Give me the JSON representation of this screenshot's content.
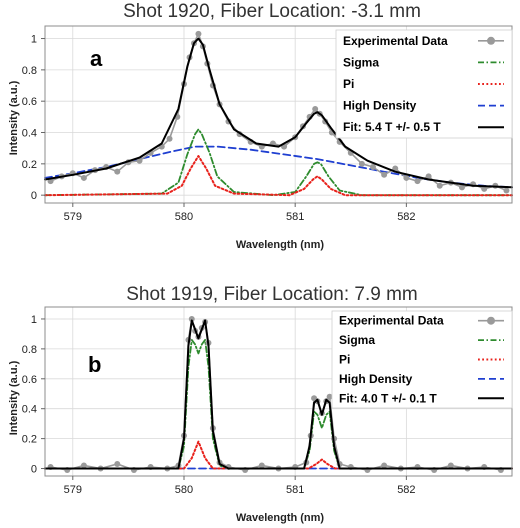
{
  "colors": {
    "experimental": "#9a9a9a",
    "sigma": "#2e8b2e",
    "pi": "#e8221c",
    "high_density": "#1f3fd1",
    "fit": "#000000"
  },
  "chart_data": [
    {
      "type": "line",
      "panel_letter": "a",
      "title": "Shot 1920, Fiber Location: -3.1 mm",
      "xlabel": "Wavelength (nm)",
      "ylabel": "Intensity (a.u.)",
      "xlim": [
        578.75,
        582.95
      ],
      "ylim": [
        -0.05,
        1.08
      ],
      "xticks": [
        579,
        580,
        581,
        582
      ],
      "yticks": [
        0,
        0.2,
        0.4,
        0.6,
        0.8,
        1
      ],
      "ytick_labels": [
        "0",
        "0.2",
        "0.4",
        "0.6",
        "0.8",
        "1"
      ],
      "grid": true,
      "legend_position": "top-right",
      "legend": [
        "Experimental Data",
        "Sigma",
        "Pi",
        "High Density",
        "Fit: 5.4 T +/- 0.5 T"
      ],
      "peaks": [
        580.13,
        581.2
      ],
      "series": [
        {
          "key": "high_density",
          "style": "dashed",
          "x": [
            578.75,
            579.0,
            579.3,
            579.6,
            579.9,
            580.1,
            580.3,
            580.6,
            580.9,
            581.2,
            581.5,
            581.8,
            582.1,
            582.4,
            582.7,
            582.95
          ],
          "y": [
            0.11,
            0.14,
            0.18,
            0.23,
            0.28,
            0.31,
            0.31,
            0.29,
            0.26,
            0.23,
            0.19,
            0.15,
            0.11,
            0.08,
            0.06,
            0.05
          ]
        },
        {
          "key": "sigma",
          "style": "dashdot",
          "x": [
            578.75,
            579.8,
            579.95,
            580.03,
            580.1,
            580.13,
            580.16,
            580.23,
            580.3,
            580.45,
            580.8,
            581.0,
            581.1,
            581.17,
            581.2,
            581.23,
            581.3,
            581.4,
            581.6,
            582.95
          ],
          "y": [
            0,
            0.01,
            0.08,
            0.26,
            0.39,
            0.42,
            0.39,
            0.27,
            0.12,
            0.02,
            0.0,
            0.02,
            0.12,
            0.2,
            0.21,
            0.2,
            0.12,
            0.03,
            0.0,
            0
          ]
        },
        {
          "key": "pi",
          "style": "dotted",
          "x": [
            578.75,
            579.85,
            579.98,
            580.06,
            580.13,
            580.2,
            580.28,
            580.45,
            580.95,
            581.08,
            581.16,
            581.2,
            581.24,
            581.32,
            581.45,
            582.95
          ],
          "y": [
            0,
            0.01,
            0.06,
            0.17,
            0.25,
            0.17,
            0.06,
            0.01,
            0.0,
            0.04,
            0.1,
            0.12,
            0.1,
            0.04,
            0.0,
            0
          ]
        },
        {
          "key": "fit",
          "style": "solid",
          "x": [
            578.75,
            579.0,
            579.3,
            579.6,
            579.8,
            579.95,
            580.03,
            580.09,
            580.13,
            580.17,
            580.23,
            580.32,
            580.45,
            580.65,
            580.85,
            581.0,
            581.1,
            581.17,
            581.2,
            581.24,
            581.32,
            581.45,
            581.65,
            581.9,
            582.2,
            582.6,
            582.95
          ],
          "y": [
            0.1,
            0.13,
            0.17,
            0.24,
            0.33,
            0.55,
            0.82,
            0.97,
            1.0,
            0.96,
            0.8,
            0.58,
            0.42,
            0.33,
            0.31,
            0.37,
            0.46,
            0.52,
            0.53,
            0.51,
            0.43,
            0.31,
            0.22,
            0.15,
            0.1,
            0.06,
            0.05
          ]
        }
      ],
      "experimental": {
        "x": [
          578.8,
          578.9,
          579.0,
          579.1,
          579.2,
          579.3,
          579.4,
          579.5,
          579.6,
          579.7,
          579.8,
          579.87,
          579.94,
          580.0,
          580.05,
          580.09,
          580.13,
          580.17,
          580.21,
          580.26,
          580.32,
          580.4,
          580.5,
          580.6,
          580.7,
          580.8,
          580.9,
          581.0,
          581.07,
          581.13,
          581.18,
          581.22,
          581.27,
          581.33,
          581.4,
          581.5,
          581.6,
          581.7,
          581.8,
          581.9,
          582.0,
          582.1,
          582.2,
          582.3,
          582.4,
          582.5,
          582.6,
          582.7,
          582.8,
          582.9
        ],
        "y": [
          0.09,
          0.12,
          0.14,
          0.11,
          0.16,
          0.18,
          0.15,
          0.21,
          0.22,
          0.27,
          0.31,
          0.36,
          0.5,
          0.71,
          0.88,
          0.97,
          1.03,
          0.95,
          0.84,
          0.7,
          0.58,
          0.47,
          0.39,
          0.34,
          0.31,
          0.33,
          0.31,
          0.37,
          0.44,
          0.5,
          0.55,
          0.52,
          0.47,
          0.4,
          0.34,
          0.27,
          0.2,
          0.18,
          0.13,
          0.17,
          0.11,
          0.09,
          0.12,
          0.06,
          0.08,
          0.05,
          0.07,
          0.04,
          0.06,
          0.03
        ]
      }
    },
    {
      "type": "line",
      "panel_letter": "b",
      "title": "Shot 1919, Fiber Location: 7.9 mm",
      "xlabel": "Wavelength (nm)",
      "ylabel": "Intensity (a.u.)",
      "xlim": [
        578.75,
        582.95
      ],
      "ylim": [
        -0.05,
        1.08
      ],
      "xticks": [
        579,
        580,
        581,
        582
      ],
      "yticks": [
        0,
        0.2,
        0.4,
        0.6,
        0.8,
        1
      ],
      "ytick_labels": [
        "0",
        "0.2",
        "0.4",
        "0.6",
        "0.8",
        "1"
      ],
      "grid": true,
      "legend_position": "top-right",
      "legend": [
        "Experimental Data",
        "Sigma",
        "Pi",
        "High Density",
        "Fit: 4.0 T +/- 0.1 T"
      ],
      "peaks": [
        580.13,
        581.24
      ],
      "series": [
        {
          "key": "high_density",
          "style": "dashed",
          "x": [
            578.75,
            582.95
          ],
          "y": [
            0.0,
            0.0
          ]
        },
        {
          "key": "sigma",
          "style": "dashdot",
          "x": [
            578.75,
            579.95,
            580.0,
            580.04,
            580.07,
            580.1,
            580.13,
            580.16,
            580.19,
            580.22,
            580.26,
            580.32,
            580.4,
            581.08,
            581.13,
            581.17,
            581.2,
            581.24,
            581.28,
            581.31,
            581.35,
            581.4,
            582.95
          ],
          "y": [
            0,
            0.0,
            0.15,
            0.68,
            0.86,
            0.83,
            0.77,
            0.83,
            0.86,
            0.68,
            0.2,
            0.02,
            0.0,
            0.0,
            0.12,
            0.38,
            0.36,
            0.27,
            0.36,
            0.38,
            0.12,
            0.0,
            0
          ]
        },
        {
          "key": "pi",
          "style": "dotted",
          "x": [
            578.75,
            580.0,
            580.07,
            580.13,
            580.19,
            580.26,
            581.12,
            581.19,
            581.24,
            581.29,
            581.36,
            582.95
          ],
          "y": [
            0,
            0.0,
            0.07,
            0.18,
            0.07,
            0.0,
            0.0,
            0.03,
            0.06,
            0.03,
            0.0,
            0
          ]
        },
        {
          "key": "fit",
          "style": "solid",
          "x": [
            578.75,
            579.95,
            580.0,
            580.04,
            580.07,
            580.1,
            580.13,
            580.16,
            580.19,
            580.22,
            580.26,
            580.32,
            580.4,
            581.08,
            581.13,
            581.17,
            581.2,
            581.24,
            581.28,
            581.31,
            581.35,
            581.4,
            582.95
          ],
          "y": [
            0,
            0.0,
            0.2,
            0.82,
            0.99,
            0.93,
            0.87,
            0.93,
            0.99,
            0.82,
            0.25,
            0.03,
            0.0,
            0.0,
            0.15,
            0.44,
            0.46,
            0.36,
            0.46,
            0.44,
            0.15,
            0.0,
            0
          ]
        }
      ],
      "experimental": {
        "x": [
          578.8,
          578.95,
          579.1,
          579.25,
          579.4,
          579.55,
          579.7,
          579.85,
          579.95,
          580.0,
          580.04,
          580.07,
          580.1,
          580.13,
          580.16,
          580.19,
          580.22,
          580.26,
          580.32,
          580.4,
          580.55,
          580.7,
          580.85,
          581.0,
          581.1,
          581.14,
          581.17,
          581.2,
          581.24,
          581.28,
          581.31,
          581.35,
          581.4,
          581.5,
          581.65,
          581.8,
          581.95,
          582.1,
          582.25,
          582.4,
          582.55,
          582.7,
          582.85
        ],
        "y": [
          0.01,
          -0.01,
          0.02,
          0.0,
          0.03,
          -0.01,
          0.01,
          0.0,
          0.02,
          0.22,
          0.86,
          1.0,
          0.92,
          0.88,
          0.94,
          0.98,
          0.84,
          0.27,
          0.04,
          0.01,
          -0.01,
          0.02,
          0.0,
          0.01,
          0.04,
          0.22,
          0.47,
          0.45,
          0.37,
          0.45,
          0.48,
          0.2,
          0.03,
          0.01,
          -0.01,
          0.02,
          0.0,
          0.01,
          -0.01,
          0.02,
          0.0,
          0.01,
          -0.01
        ]
      }
    }
  ]
}
